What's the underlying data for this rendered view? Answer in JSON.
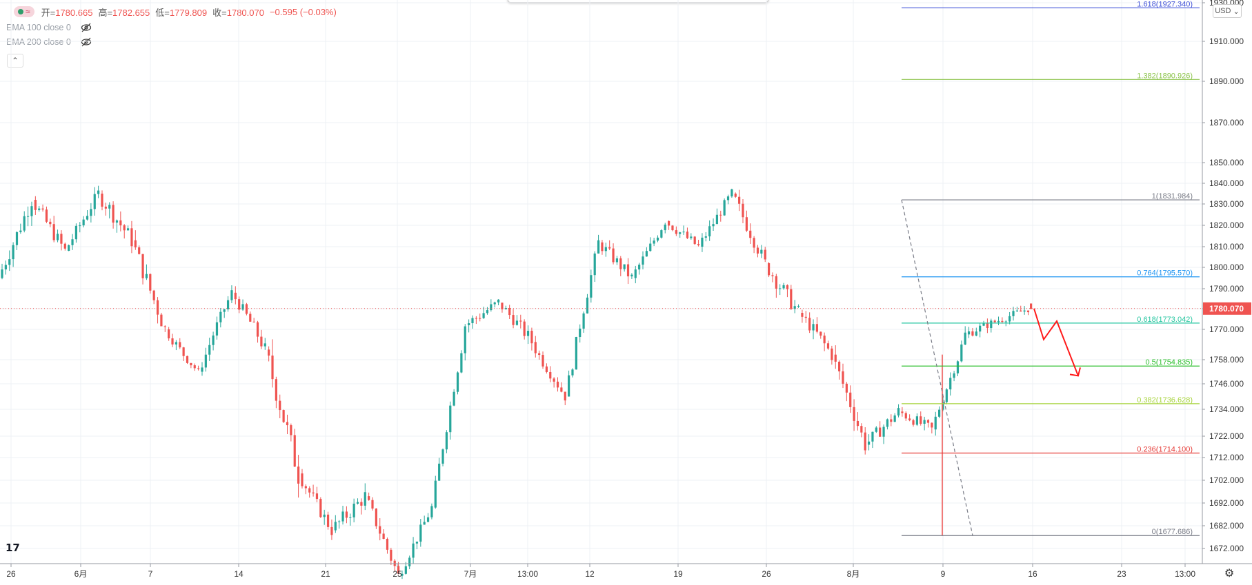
{
  "legend": {
    "open_label": "开",
    "open": "1780.665",
    "high_label": "高",
    "high": "1782.655",
    "low_label": "低",
    "low": "1779.809",
    "close_label": "收",
    "close": "1780.070",
    "change": "−0.595 (−0.03%)",
    "colors": {
      "up": "#26a69a",
      "down": "#ef5350"
    }
  },
  "indicators": [
    {
      "label": "EMA 100 close 0",
      "icon": "eye-off-icon"
    },
    {
      "label": "EMA 200 close 0",
      "icon": "eye-off-icon"
    }
  ],
  "currency_button": "USD",
  "chart_data": {
    "type": "candlestick",
    "symbol_price_last": 1780.07,
    "y_axis_ticks": [
      1930.0,
      1910.0,
      1890.0,
      1870.0,
      1850.0,
      1840.0,
      1830.0,
      1820.0,
      1810.0,
      1800.0,
      1790.0,
      1780.0,
      1770.0,
      1758.0,
      1746.0,
      1734.0,
      1722.0,
      1712.0,
      1702.0,
      1692.0,
      1682.0,
      1672.0
    ],
    "y_axis_labels": [
      "1930.000",
      "1910.000",
      "1890.000",
      "1870.000",
      "1850.000",
      "1840.000",
      "1830.000",
      "1820.000",
      "1810.000",
      "1800.000",
      "1790.000",
      "1780.000",
      "1770.000",
      "1758.000",
      "1746.000",
      "1734.000",
      "1722.000",
      "1712.000",
      "1702.000",
      "1692.000",
      "1682.000",
      "1672.000"
    ],
    "x_axis_labels": [
      "26",
      "6月",
      "7",
      "14",
      "21",
      "25",
      "7月",
      "13:00",
      "12",
      "19",
      "26",
      "8月",
      "9",
      "16",
      "23",
      "13:00"
    ],
    "last_price_label": "1780.070",
    "fibonacci": {
      "from": 1831.984,
      "to": 1677.686,
      "levels": [
        {
          "ratio": "1.618",
          "price": 1927.34,
          "label": "1.618(1927.340)",
          "color": "#3f51d8"
        },
        {
          "ratio": "1.382",
          "price": 1890.926,
          "label": "1.382(1890.926)",
          "color": "#8bc34a"
        },
        {
          "ratio": "1",
          "price": 1831.984,
          "label": "1(1831.984)",
          "color": "#787b86"
        },
        {
          "ratio": "0.764",
          "price": 1795.57,
          "label": "0.764(1795.570)",
          "color": "#2196f3"
        },
        {
          "ratio": "0.618",
          "price": 1773.042,
          "label": "0.618(1773.042)",
          "color": "#26c6a0"
        },
        {
          "ratio": "0.5",
          "price": 1754.835,
          "label": "0.5(1754.835)",
          "color": "#2bbf2b"
        },
        {
          "ratio": "0.382",
          "price": 1736.628,
          "label": "0.382(1736.628)",
          "color": "#a6d33a"
        },
        {
          "ratio": "0.236",
          "price": 1714.1,
          "label": "0.236(1714.100)",
          "color": "#e53935"
        },
        {
          "ratio": "0",
          "price": 1677.686,
          "label": "0(1677.686)",
          "color": "#787b86"
        }
      ]
    },
    "projection_prices": [
      1780.07,
      1766.0,
      1774.0,
      1750.0
    ],
    "candle_segments": [
      {
        "from": 1795,
        "to": 1832,
        "vol": 8
      },
      {
        "from": 1832,
        "to": 1808,
        "vol": 7
      },
      {
        "from": 1808,
        "to": 1835,
        "vol": 6
      },
      {
        "from": 1835,
        "to": 1813,
        "vol": 8
      },
      {
        "from": 1813,
        "to": 1770,
        "vol": 9
      },
      {
        "from": 1770,
        "to": 1752,
        "vol": 4
      },
      {
        "from": 1752,
        "to": 1788,
        "vol": 5
      },
      {
        "from": 1788,
        "to": 1762,
        "vol": 6
      },
      {
        "from": 1762,
        "to": 1705,
        "vol": 12
      },
      {
        "from": 1705,
        "to": 1680,
        "vol": 6
      },
      {
        "from": 1680,
        "to": 1695,
        "vol": 7
      },
      {
        "from": 1695,
        "to": 1660,
        "vol": 6
      },
      {
        "from": 1660,
        "to": 1690,
        "vol": 5
      },
      {
        "from": 1690,
        "to": 1772,
        "vol": 6
      },
      {
        "from": 1772,
        "to": 1783,
        "vol": 6
      },
      {
        "from": 1783,
        "to": 1765,
        "vol": 6
      },
      {
        "from": 1765,
        "to": 1740,
        "vol": 5
      },
      {
        "from": 1740,
        "to": 1812,
        "vol": 6
      },
      {
        "from": 1812,
        "to": 1795,
        "vol": 6
      },
      {
        "from": 1795,
        "to": 1822,
        "vol": 5
      },
      {
        "from": 1822,
        "to": 1810,
        "vol": 5
      },
      {
        "from": 1810,
        "to": 1835,
        "vol": 5
      },
      {
        "from": 1835,
        "to": 1802,
        "vol": 7
      },
      {
        "from": 1802,
        "to": 1778,
        "vol": 8
      },
      {
        "from": 1778,
        "to": 1760,
        "vol": 6
      },
      {
        "from": 1760,
        "to": 1718,
        "vol": 8
      },
      {
        "from": 1718,
        "to": 1733,
        "vol": 6
      },
      {
        "from": 1733,
        "to": 1725,
        "vol": 5
      },
      {
        "from": 1725,
        "to": 1768,
        "vol": 5
      },
      {
        "from": 1768,
        "to": 1780,
        "vol": 4
      }
    ]
  }
}
